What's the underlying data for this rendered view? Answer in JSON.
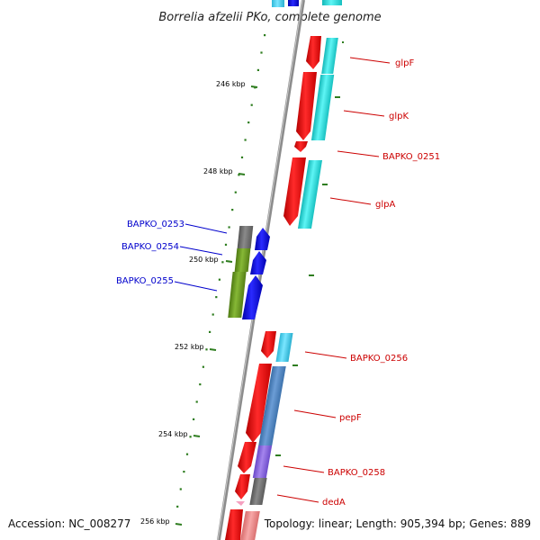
{
  "title": "Borrelia afzelii PKo, complete genome",
  "accession": "Accession: NC_008277",
  "topology": "Topology: linear; Length: 905,394 bp; Genes: 889",
  "colors": {
    "backbone": "#8c8c8c",
    "tick": "#2e7d1f",
    "label_right": "#cc0000",
    "label_left": "#0000cc",
    "forward_cds": "#ff0000",
    "forward_blast": "#22dede",
    "reverse_cds": "#0000ee",
    "reverse_blast_a": "#777777",
    "reverse_blast_b": "#6b9a1e",
    "blast_steel": "#4f86c6",
    "blast_violet": "#8a66dd",
    "pink": "#f28c8c"
  },
  "ticks": [
    {
      "label": "246 kbp"
    },
    {
      "label": "248 kbp"
    },
    {
      "label": "250 kbp"
    },
    {
      "label": "252 kbp"
    },
    {
      "label": "254 kbp"
    },
    {
      "label": "256 kbp"
    }
  ],
  "genes_right": [
    {
      "label": "glpF"
    },
    {
      "label": "glpK"
    },
    {
      "label": "BAPKO_0251"
    },
    {
      "label": "glpA"
    },
    {
      "label": "BAPKO_0256"
    },
    {
      "label": "pepF"
    },
    {
      "label": "BAPKO_0258"
    },
    {
      "label": "dedA"
    }
  ],
  "genes_left": [
    {
      "label": "BAPKO_0253"
    },
    {
      "label": "BAPKO_0254"
    },
    {
      "label": "BAPKO_0255"
    }
  ]
}
